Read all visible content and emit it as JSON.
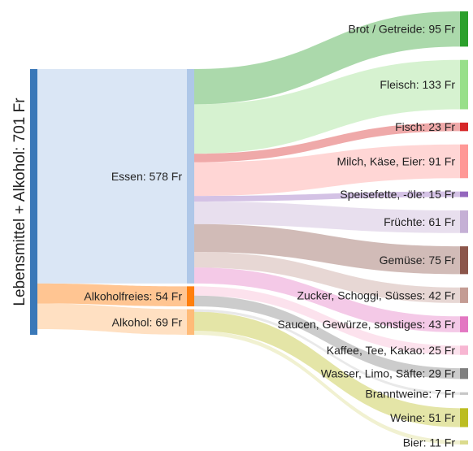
{
  "chart_data": {
    "type": "sankey",
    "unit": "Fr",
    "root": {
      "label": "Lebensmittel + Alkohol: 701 Fr",
      "value": 701,
      "color": "#3a78b8"
    },
    "groups": [
      {
        "label": "Essen: 578 Fr",
        "value": 578,
        "color": "#aec7e8"
      },
      {
        "label": "Alkoholfreies: 54 Fr",
        "value": 54,
        "color": "#ff7f0e"
      },
      {
        "label": "Alkohol: 69 Fr",
        "value": 69,
        "color": "#ffbb78"
      }
    ],
    "categories": [
      {
        "label": "Brot / Getreide: 95 Fr",
        "value": 95,
        "group": 0,
        "color": "#2ca02c"
      },
      {
        "label": "Fleisch: 133 Fr",
        "value": 133,
        "group": 0,
        "color": "#98df8a"
      },
      {
        "label": "Fisch: 23 Fr",
        "value": 23,
        "group": 0,
        "color": "#d62728"
      },
      {
        "label": "Milch, Käse, Eier: 91 Fr",
        "value": 91,
        "group": 0,
        "color": "#ff9896"
      },
      {
        "label": "Speisefette, -öle: 15 Fr",
        "value": 15,
        "group": 0,
        "color": "#9467bd"
      },
      {
        "label": "Früchte: 61 Fr",
        "value": 61,
        "group": 0,
        "color": "#c5b0d5"
      },
      {
        "label": "Gemüse: 75 Fr",
        "value": 75,
        "group": 0,
        "color": "#8c564b"
      },
      {
        "label": "Zucker, Schoggi, Süsses: 42 Fr",
        "value": 42,
        "group": 0,
        "color": "#c49c94"
      },
      {
        "label": "Saucen, Gewürze, sonstiges: 43 Fr",
        "value": 43,
        "group": 0,
        "color": "#e377c2"
      },
      {
        "label": "Kaffee, Tee, Kakao: 25 Fr",
        "value": 25,
        "group": 1,
        "color": "#f7b6d2"
      },
      {
        "label": "Wasser, Limo, Säfte: 29 Fr",
        "value": 29,
        "group": 1,
        "color": "#7f7f7f"
      },
      {
        "label": "Branntweine: 7 Fr",
        "value": 7,
        "group": 2,
        "color": "#c7c7c7"
      },
      {
        "label": "Weine: 51 Fr",
        "value": 51,
        "group": 2,
        "color": "#bcbd22"
      },
      {
        "label": "Bier: 11 Fr",
        "value": 11,
        "group": 2,
        "color": "#dbdb8d"
      }
    ]
  }
}
